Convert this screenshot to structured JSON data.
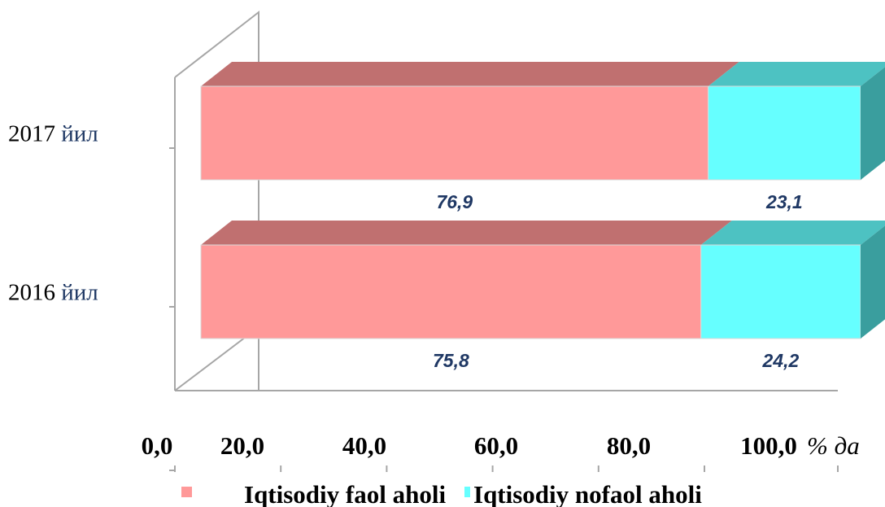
{
  "chart_data": {
    "type": "bar",
    "orientation": "horizontal",
    "stacked": true,
    "three_d": true,
    "categories": [
      {
        "year": "2017",
        "suffix": "йил"
      },
      {
        "year": "2016",
        "suffix": "йил"
      }
    ],
    "series": [
      {
        "name": "Iqtisodiy faol aholi",
        "values": [
          76.9,
          75.8
        ],
        "labels": [
          "76,9",
          "75,8"
        ],
        "color": "#ff9999",
        "top_color": "#c07070"
      },
      {
        "name": "Iqtisodiy nofaol aholi",
        "values": [
          23.1,
          24.2
        ],
        "labels": [
          "23,1",
          "24,2"
        ],
        "color": "#66ffff",
        "top_color": "#4dc2c2",
        "side_color": "#3a9e9e"
      }
    ],
    "x_ticks": [
      {
        "value": 0,
        "label": "0,0"
      },
      {
        "value": 20,
        "label": "20,0"
      },
      {
        "value": 40,
        "label": "40,0"
      },
      {
        "value": 60,
        "label": "60,0"
      },
      {
        "value": 80,
        "label": "80,0"
      },
      {
        "value": 100,
        "label": "100,0"
      }
    ],
    "x_unit": "% да",
    "xlim": [
      0,
      100
    ],
    "legend_position": "bottom"
  }
}
